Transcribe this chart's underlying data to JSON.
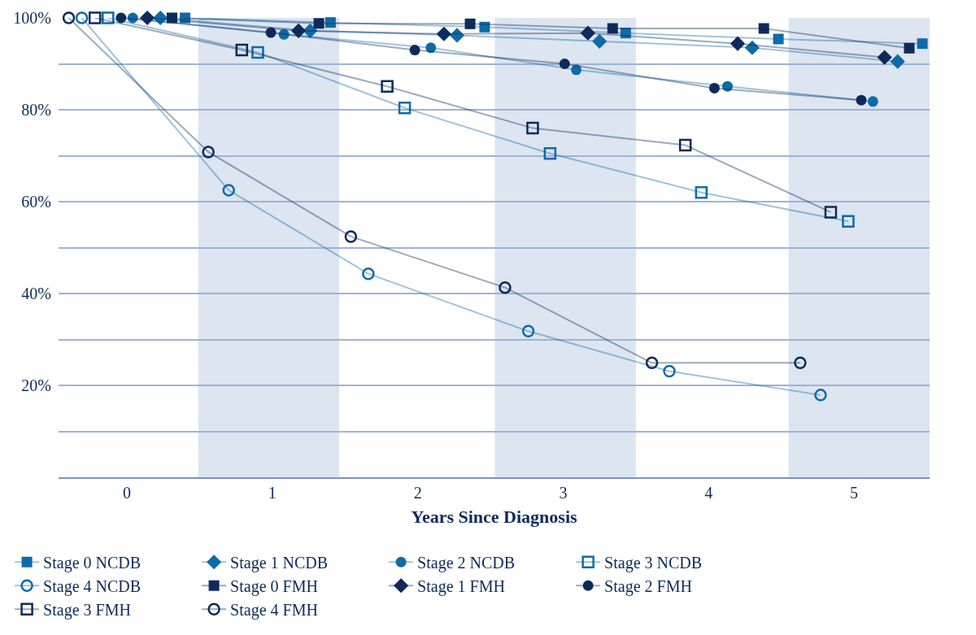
{
  "chart_data": {
    "type": "line",
    "xlabel": "Years Since Diagnosis",
    "xlim": [
      -0.47,
      5.52
    ],
    "xticks": [
      0,
      1,
      2,
      3,
      4,
      5
    ],
    "ylim": [
      0,
      100
    ],
    "yticks": [
      {
        "value": 10,
        "label": null
      },
      {
        "value": 20,
        "label": "20%"
      },
      {
        "value": 30,
        "label": null
      },
      {
        "value": 40,
        "label": "40%"
      },
      {
        "value": 50,
        "label": null
      },
      {
        "value": 60,
        "label": "60%"
      },
      {
        "value": 70,
        "label": null
      },
      {
        "value": 80,
        "label": "80%"
      },
      {
        "value": 90,
        "label": null
      },
      {
        "value": 100,
        "label": "100%"
      }
    ],
    "grid": "y",
    "legend": "bottom",
    "bands": [
      {
        "axis": "x",
        "from": 0.49,
        "to": 1.46,
        "color": "#dce5f0"
      },
      {
        "axis": "x",
        "from": 2.53,
        "to": 3.5,
        "color": "#dce5f0"
      },
      {
        "axis": "x",
        "from": 4.55,
        "to": 5.52,
        "color": "#dce5f0"
      }
    ],
    "series": [
      {
        "name": "Stage 0 NCDB",
        "color": "#0f6aa8",
        "marker": "square",
        "x": [
          0.4,
          1.4,
          2.46,
          3.43,
          4.48,
          5.47
        ],
        "values": [
          100,
          99.0,
          98.0,
          96.7,
          95.4,
          94.4
        ]
      },
      {
        "name": "Stage 1 NCDB",
        "color": "#0f6aa8",
        "marker": "diamond",
        "x": [
          0.23,
          1.26,
          2.27,
          3.25,
          4.3,
          5.3
        ],
        "values": [
          100,
          97.2,
          96.2,
          94.9,
          93.5,
          90.5
        ]
      },
      {
        "name": "Stage 2 NCDB",
        "color": "#0f6aa8",
        "marker": "circle",
        "x": [
          0.04,
          1.08,
          2.09,
          3.09,
          4.13,
          5.13
        ],
        "values": [
          100,
          96.4,
          93.5,
          88.7,
          85.1,
          81.8
        ]
      },
      {
        "name": "Stage 3 NCDB",
        "color": "#0f6aa8",
        "marker": "square",
        "x": [
          -0.13,
          0.9,
          1.91,
          2.91,
          3.95,
          4.96
        ],
        "values": [
          100,
          92.5,
          80.4,
          70.5,
          62.0,
          55.7
        ]
      },
      {
        "name": "Stage 4 NCDB",
        "color": "#0f6aa8",
        "marker": "circle",
        "x": [
          -0.31,
          0.7,
          1.66,
          2.76,
          3.73,
          4.77
        ],
        "values": [
          100,
          62.5,
          44.3,
          31.8,
          23.1,
          17.9
        ]
      },
      {
        "name": "Stage 0 FMH",
        "color": "#0d2a5a",
        "marker": "square",
        "x": [
          0.31,
          1.32,
          2.36,
          3.34,
          4.38,
          5.38
        ],
        "values": [
          100,
          98.8,
          98.7,
          97.7,
          97.7,
          93.4
        ]
      },
      {
        "name": "Stage 1 FMH",
        "color": "#0d2a5a",
        "marker": "diamond",
        "x": [
          0.14,
          1.18,
          2.18,
          3.17,
          4.2,
          5.21
        ],
        "values": [
          100,
          97.2,
          96.5,
          96.7,
          94.4,
          91.4
        ]
      },
      {
        "name": "Stage 2 FMH",
        "color": "#0d2a5a",
        "marker": "circle",
        "x": [
          -0.04,
          0.99,
          1.98,
          3.01,
          4.04,
          5.05
        ],
        "values": [
          100,
          96.8,
          93.0,
          90.0,
          84.7,
          82.1
        ]
      },
      {
        "name": "Stage 3 FMH",
        "color": "#0d2a5a",
        "marker": "square",
        "x": [
          -0.22,
          0.79,
          1.79,
          2.79,
          3.84,
          4.84
        ],
        "values": [
          100,
          93.0,
          85.1,
          76.0,
          72.3,
          57.7
        ]
      },
      {
        "name": "Stage 4 FMH",
        "color": "#0d2a5a",
        "marker": "circle",
        "x": [
          -0.4,
          0.56,
          1.54,
          2.6,
          3.61,
          4.63
        ],
        "values": [
          100,
          70.8,
          52.4,
          41.3,
          24.9,
          24.9
        ]
      }
    ]
  }
}
